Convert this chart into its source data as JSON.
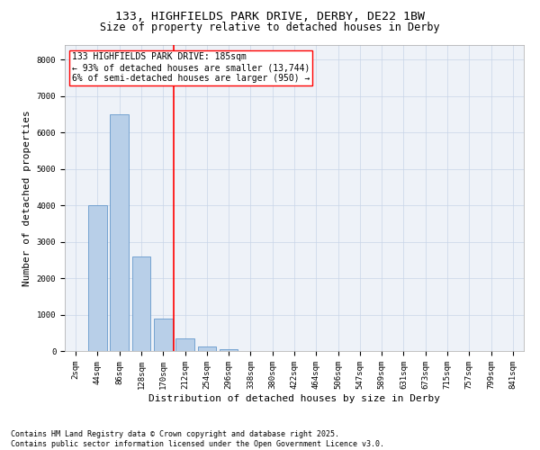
{
  "title_line1": "133, HIGHFIELDS PARK DRIVE, DERBY, DE22 1BW",
  "title_line2": "Size of property relative to detached houses in Derby",
  "xlabel": "Distribution of detached houses by size in Derby",
  "ylabel": "Number of detached properties",
  "bar_labels": [
    "2sqm",
    "44sqm",
    "86sqm",
    "128sqm",
    "170sqm",
    "212sqm",
    "254sqm",
    "296sqm",
    "338sqm",
    "380sqm",
    "422sqm",
    "464sqm",
    "506sqm",
    "547sqm",
    "589sqm",
    "631sqm",
    "673sqm",
    "715sqm",
    "757sqm",
    "799sqm",
    "841sqm"
  ],
  "bar_values": [
    0,
    4000,
    6500,
    2600,
    900,
    350,
    120,
    50,
    0,
    0,
    0,
    0,
    0,
    0,
    0,
    0,
    0,
    0,
    0,
    0,
    0
  ],
  "bar_color": "#b8cfe8",
  "bar_edgecolor": "#6699cc",
  "vline_x": 4.5,
  "vline_color": "red",
  "annotation_text": "133 HIGHFIELDS PARK DRIVE: 185sqm\n← 93% of detached houses are smaller (13,744)\n6% of semi-detached houses are larger (950) →",
  "ylim": [
    0,
    8400
  ],
  "yticks": [
    0,
    1000,
    2000,
    3000,
    4000,
    5000,
    6000,
    7000,
    8000
  ],
  "grid_color": "#c8d4e8",
  "background_color": "#eef2f8",
  "footer_text": "Contains HM Land Registry data © Crown copyright and database right 2025.\nContains public sector information licensed under the Open Government Licence v3.0.",
  "title_fontsize": 9.5,
  "subtitle_fontsize": 8.5,
  "tick_fontsize": 6.5,
  "label_fontsize": 8,
  "annotation_fontsize": 7,
  "footer_fontsize": 6
}
